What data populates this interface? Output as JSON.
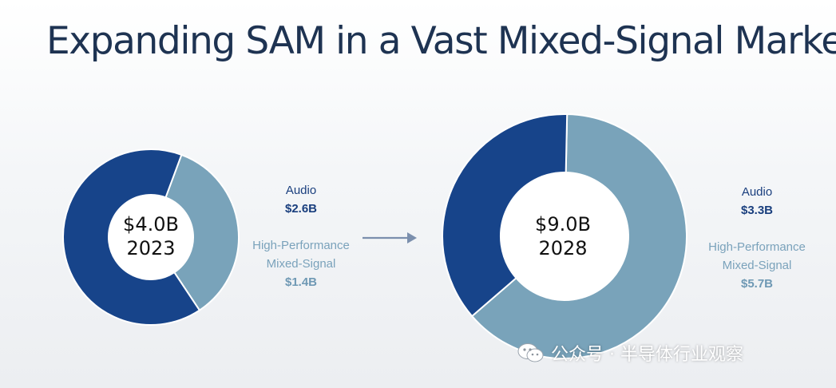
{
  "title": "Expanding SAM in a Vast Mixed-Signal Market",
  "colors": {
    "audio": "#17448a",
    "hpms": "#79a3ba",
    "title": "#1e3352",
    "arrow": "#7b8fad"
  },
  "arrow_icon": "right-arrow-icon",
  "watermark": {
    "icon": "wechat-icon",
    "text": "公众号 · 半导体行业观察"
  },
  "chart_data": [
    {
      "type": "pie",
      "center_value": "$4.0B",
      "center_year": "2023",
      "labels": [
        "Audio",
        "High-Performance Mixed-Signal"
      ],
      "values": [
        2.6,
        1.4
      ],
      "value_labels": [
        "$2.6B",
        "$1.4B"
      ],
      "legend": {
        "audio_label": "Audio",
        "audio_value": "$2.6B",
        "hpms_line1": "High-Performance",
        "hpms_line2": "Mixed-Signal",
        "hpms_value": "$1.4B"
      }
    },
    {
      "type": "pie",
      "center_value": "$9.0B",
      "center_year": "2028",
      "labels": [
        "Audio",
        "High-Performance Mixed-Signal"
      ],
      "values": [
        3.3,
        5.7
      ],
      "value_labels": [
        "$3.3B",
        "$5.7B"
      ],
      "legend": {
        "audio_label": "Audio",
        "audio_value": "$3.3B",
        "hpms_line1": "High-Performance",
        "hpms_line2": "Mixed-Signal",
        "hpms_value": "$5.7B"
      }
    }
  ]
}
